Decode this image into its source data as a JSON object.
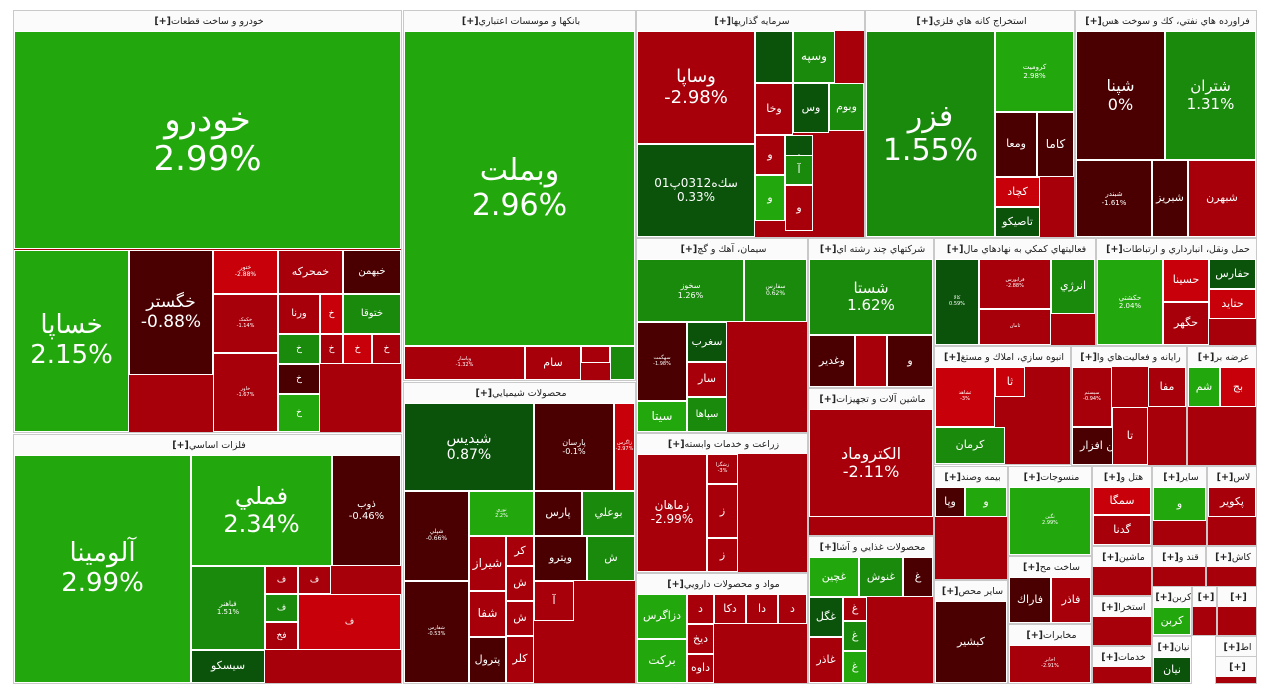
{
  "colors": {
    "strong_green": "#22a80c",
    "green": "#1a8a0c",
    "dark_green": "#0b520b",
    "red": "#c8000a",
    "mid_red": "#a8000a",
    "dark_red": "#4a0000",
    "border": "#ffffff"
  },
  "sectors": [
    {
      "title": "خودرو و ساخت قطعات",
      "expand": "[+]",
      "tiles": [
        {
          "sym": "خودرو",
          "pct": "2.99%",
          "c": "strong_green"
        },
        {
          "sym": "خساپا",
          "pct": "2.15%",
          "c": "strong_green"
        },
        {
          "sym": "خگستر",
          "pct": "-0.88%",
          "c": "dark_red"
        },
        {
          "sym": "ختور",
          "pct": "-2.88%",
          "c": "red"
        },
        {
          "sym": "خمحرکه",
          "pct": "",
          "c": "mid_red"
        },
        {
          "sym": "خبهمن",
          "pct": "",
          "c": "dark_red"
        },
        {
          "sym": "ورنا",
          "pct": "",
          "c": "mid_red"
        },
        {
          "sym": "ختوقا",
          "pct": "",
          "c": "green"
        },
        {
          "sym": "خ",
          "pct": "",
          "c": "red"
        },
        {
          "sym": "خکمک",
          "pct": "-1.14%",
          "c": "mid_red"
        },
        {
          "sym": "خ",
          "pct": "",
          "c": "green"
        },
        {
          "sym": "خ",
          "pct": "",
          "c": "mid_red"
        },
        {
          "sym": "خ",
          "pct": "",
          "c": "dark_red"
        },
        {
          "sym": "خ",
          "pct": "",
          "c": "red"
        },
        {
          "sym": "خ",
          "pct": "",
          "c": "mid_red"
        },
        {
          "sym": "خاور",
          "pct": "-1.67%",
          "c": "mid_red"
        },
        {
          "sym": "خ",
          "pct": "",
          "c": "dark_red"
        },
        {
          "sym": "خ",
          "pct": "",
          "c": "strong_green"
        }
      ]
    },
    {
      "title": "فلزات اساسي",
      "expand": "[+]",
      "tiles": [
        {
          "sym": "آلومينا",
          "pct": "2.99%",
          "c": "strong_green"
        },
        {
          "sym": "فملي",
          "pct": "2.34%",
          "c": "strong_green"
        },
        {
          "sym": "ذوب",
          "pct": "-0.46%",
          "c": "dark_red"
        },
        {
          "sym": "فباهنر",
          "pct": "1.51%",
          "c": "green"
        },
        {
          "sym": "ف",
          "pct": "",
          "c": "mid_red"
        },
        {
          "sym": "ف",
          "pct": "",
          "c": "green"
        },
        {
          "sym": "فخ",
          "pct": "",
          "c": "mid_red"
        },
        {
          "sym": "ف",
          "pct": "",
          "c": "mid_red"
        },
        {
          "sym": "سيسكو",
          "pct": "",
          "c": "dark_green"
        },
        {
          "sym": "ف",
          "pct": "",
          "c": "red"
        }
      ]
    },
    {
      "title": "بانكها و موسسات اعتباري",
      "expand": "[+]",
      "tiles": [
        {
          "sym": "وبملت",
          "pct": "2.96%",
          "c": "strong_green"
        },
        {
          "sym": "وپاسار",
          "pct": "-1.32%",
          "c": "mid_red"
        },
        {
          "sym": "سام",
          "pct": "",
          "c": "mid_red"
        },
        {
          "sym": "",
          "pct": "",
          "c": "mid_red"
        },
        {
          "sym": "",
          "pct": "",
          "c": "green"
        }
      ]
    },
    {
      "title": "محصولات شيميايي",
      "expand": "[+]",
      "tiles": [
        {
          "sym": "شبديس",
          "pct": "0.87%",
          "c": "dark_green"
        },
        {
          "sym": "پارسان",
          "pct": "-0.1%",
          "c": "dark_red"
        },
        {
          "sym": "زاگرس",
          "pct": "-2.97%",
          "c": "red"
        },
        {
          "sym": "شپلي",
          "pct": "-0.66%",
          "c": "dark_red"
        },
        {
          "sym": "نوري",
          "pct": "2.2%",
          "c": "strong_green"
        },
        {
          "sym": "پارس",
          "pct": "",
          "c": "dark_red"
        },
        {
          "sym": "بوعلي",
          "pct": "",
          "c": "green"
        },
        {
          "sym": "شيراز",
          "pct": "",
          "c": "mid_red"
        },
        {
          "sym": "شفارس",
          "pct": "-0.53%",
          "c": "dark_red"
        },
        {
          "sym": "شفا",
          "pct": "",
          "c": "mid_red"
        },
        {
          "sym": "پترول",
          "pct": "",
          "c": "dark_red"
        },
        {
          "sym": "شصدف",
          "pct": "2.2%",
          "c": "strong_green"
        },
        {
          "sym": "کر",
          "pct": "",
          "c": "mid_red"
        },
        {
          "sym": "ويترو",
          "pct": "",
          "c": "dark_red"
        },
        {
          "sym": "ش",
          "pct": "",
          "c": "green"
        },
        {
          "sym": "ش",
          "pct": "",
          "c": "mid_red"
        },
        {
          "sym": "ش",
          "pct": "",
          "c": "mid_red"
        },
        {
          "sym": "آ",
          "pct": "",
          "c": "mid_red"
        },
        {
          "sym": "کلر",
          "pct": "",
          "c": "mid_red"
        }
      ]
    },
    {
      "title": "سرمايه گذاريها",
      "expand": "[+]",
      "tiles": [
        {
          "sym": "وساپا",
          "pct": "-2.98%",
          "c": "mid_red"
        },
        {
          "sym": "سك‌ه0312پ01",
          "pct": "0.33%",
          "c": "dark_green"
        },
        {
          "sym": "",
          "pct": "",
          "c": "dark_green"
        },
        {
          "sym": "وسپه",
          "pct": "",
          "c": "green"
        },
        {
          "sym": "وخا",
          "pct": "",
          "c": "mid_red"
        },
        {
          "sym": "وس",
          "pct": "",
          "c": "dark_green"
        },
        {
          "sym": "وبوم",
          "pct": "",
          "c": "green"
        },
        {
          "sym": "و",
          "pct": "",
          "c": "mid_red"
        },
        {
          "sym": "و",
          "pct": "",
          "c": "dark_green"
        },
        {
          "sym": "آ",
          "pct": "",
          "c": "green"
        },
        {
          "sym": "و",
          "pct": "",
          "c": "strong_green"
        },
        {
          "sym": "و",
          "pct": "",
          "c": "mid_red"
        }
      ]
    },
    {
      "title": "استخراج كانه هاي فلزي",
      "expand": "[+]",
      "tiles": [
        {
          "sym": "فزر",
          "pct": "1.55%",
          "c": "green"
        },
        {
          "sym": "کرومیت",
          "pct": "2.98%",
          "c": "strong_green"
        },
        {
          "sym": "کاما",
          "pct": "",
          "c": "dark_red"
        },
        {
          "sym": "ومعا",
          "pct": "",
          "c": "dark_red"
        },
        {
          "sym": "کچاد",
          "pct": "",
          "c": "red"
        },
        {
          "sym": "تاصيكو",
          "pct": "",
          "c": "dark_green"
        }
      ]
    },
    {
      "title": "فراورده هاي نفتي، كك و سوخت هس",
      "expand": "[+]",
      "tiles": [
        {
          "sym": "شپنا",
          "pct": "0%",
          "c": "dark_red"
        },
        {
          "sym": "شتران",
          "pct": "1.31%",
          "c": "green"
        },
        {
          "sym": "شبندر",
          "pct": "-1.61%",
          "c": "dark_red"
        },
        {
          "sym": "شبريز",
          "pct": "",
          "c": "dark_red"
        },
        {
          "sym": "شبهرن",
          "pct": "",
          "c": "mid_red"
        }
      ]
    },
    {
      "title": "سيمان، آهك و گچ",
      "expand": "[+]",
      "tiles": [
        {
          "sym": "سخوز",
          "pct": "1.26%",
          "c": "green"
        },
        {
          "sym": "سفارس",
          "pct": "0.62%",
          "c": "green"
        },
        {
          "sym": "سهگمت",
          "pct": "-1.98%",
          "c": "dark_red"
        },
        {
          "sym": "سغرب",
          "pct": "",
          "c": "dark_green"
        },
        {
          "sym": "سار",
          "pct": "",
          "c": "mid_red"
        },
        {
          "sym": "سپاها",
          "pct": "",
          "c": "green"
        },
        {
          "sym": "سيتا",
          "pct": "",
          "c": "strong_green"
        }
      ]
    },
    {
      "title": "شركتهاي چند رشته اي",
      "expand": "[+]",
      "tiles": [
        {
          "sym": "شستا",
          "pct": "1.62%",
          "c": "green"
        },
        {
          "sym": "وغدير",
          "pct": "",
          "c": "dark_red"
        },
        {
          "sym": "",
          "pct": "",
          "c": "mid_red"
        },
        {
          "sym": "و",
          "pct": "",
          "c": "dark_red"
        }
      ]
    },
    {
      "title": "ماشين آلات و تجهيزات",
      "expand": "[+]",
      "tiles": [
        {
          "sym": "الكتروماد",
          "pct": "-2.11%",
          "c": "mid_red"
        }
      ]
    },
    {
      "title": "زراعت و خدمات وابسته",
      "expand": "[+]",
      "tiles": [
        {
          "sym": "زماهان",
          "pct": "-2.99%",
          "c": "mid_red"
        },
        {
          "sym": "زشگزا",
          "pct": "-3%",
          "c": "mid_red"
        },
        {
          "sym": "ز",
          "pct": "",
          "c": "mid_red"
        },
        {
          "sym": "ز",
          "pct": "",
          "c": "mid_red"
        }
      ]
    },
    {
      "title": "مواد و محصولات دارويي",
      "expand": "[+]",
      "tiles": [
        {
          "sym": "دزاگرس",
          "pct": "",
          "c": "strong_green"
        },
        {
          "sym": "بركت",
          "pct": "",
          "c": "strong_green"
        },
        {
          "sym": "د",
          "pct": "",
          "c": "mid_red"
        },
        {
          "sym": "ديخ",
          "pct": "",
          "c": "mid_red"
        },
        {
          "sym": "داوه",
          "pct": "",
          "c": "mid_red"
        },
        {
          "sym": "دكا",
          "pct": "",
          "c": "mid_red"
        },
        {
          "sym": "دا",
          "pct": "",
          "c": "mid_red"
        },
        {
          "sym": "د",
          "pct": "",
          "c": "mid_red"
        }
      ]
    },
    {
      "title": "محصولات غذايي و آشا",
      "expand": "[+]",
      "tiles": [
        {
          "sym": "غچين",
          "pct": "",
          "c": "strong_green"
        },
        {
          "sym": "غنوش",
          "pct": "",
          "c": "green"
        },
        {
          "sym": "غ",
          "pct": "",
          "c": "dark_red"
        },
        {
          "sym": "غگل",
          "pct": "",
          "c": "dark_green"
        },
        {
          "sym": "غ",
          "pct": "",
          "c": "mid_red"
        },
        {
          "sym": "غ",
          "pct": "",
          "c": "green"
        },
        {
          "sym": "غاذر",
          "pct": "",
          "c": "mid_red"
        },
        {
          "sym": "غ",
          "pct": "",
          "c": "strong_green"
        }
      ]
    },
    {
      "title": "فعاليتهاي كمكي به نهادهاي مال",
      "expand": "[+]",
      "tiles": [
        {
          "sym": "کالا",
          "pct": "0.59%",
          "c": "dark_green"
        },
        {
          "sym": "فرابورس",
          "pct": "-2.88%",
          "c": "mid_red"
        },
        {
          "sym": "انرژي",
          "pct": "",
          "c": "green"
        },
        {
          "sym": "ثامان",
          "pct": "",
          "c": "mid_red"
        }
      ]
    },
    {
      "title": "انبوه سازي، املاك و مستغ",
      "expand": "[+]",
      "tiles": [
        {
          "sym": "ثشاهد",
          "pct": "-3%",
          "c": "red"
        },
        {
          "sym": "ثا",
          "pct": "",
          "c": "red"
        },
        {
          "sym": "كرمان",
          "pct": "",
          "c": "green"
        }
      ]
    },
    {
      "title": "حمل ونقل، انبارداري و ارتباطات",
      "expand": "[+]",
      "tiles": [
        {
          "sym": "حکشتي",
          "pct": "2.04%",
          "c": "strong_green"
        },
        {
          "sym": "حسينا",
          "pct": "",
          "c": "red"
        },
        {
          "sym": "حفارس",
          "pct": "",
          "c": "dark_green"
        },
        {
          "sym": "حتايد",
          "pct": "",
          "c": "red"
        },
        {
          "sym": "حگهر",
          "pct": "",
          "c": "mid_red"
        }
      ]
    },
    {
      "title": "رايانه و فعاليت‌هاي وا",
      "expand": "[+]",
      "tiles": [
        {
          "sym": "سيستم",
          "pct": "-0.94%",
          "c": "mid_red"
        },
        {
          "sym": "مفا",
          "pct": "",
          "c": "mid_red"
        },
        {
          "sym": "فن افزار",
          "pct": "",
          "c": "dark_red"
        },
        {
          "sym": "تا",
          "pct": "",
          "c": "mid_red"
        }
      ]
    },
    {
      "title": "عرضه بر",
      "expand": "[+]",
      "tiles": [
        {
          "sym": "شم",
          "pct": "",
          "c": "strong_green"
        },
        {
          "sym": "بج",
          "pct": "",
          "c": "red"
        }
      ]
    },
    {
      "title": "بيمه وصند",
      "expand": "[+]",
      "tiles": [
        {
          "sym": "وپا",
          "pct": "",
          "c": "dark_red"
        },
        {
          "sym": "و",
          "pct": "",
          "c": "strong_green"
        }
      ]
    },
    {
      "title": "منسوجات",
      "expand": "[+]",
      "tiles": [
        {
          "sym": "نگين",
          "pct": "2.99%",
          "c": "strong_green"
        }
      ]
    },
    {
      "title": "هتل و",
      "expand": "[+]",
      "tiles": [
        {
          "sym": "سمگا",
          "pct": "",
          "c": "red"
        },
        {
          "sym": "گدنا",
          "pct": "",
          "c": "mid_red"
        }
      ]
    },
    {
      "title": "ساير",
      "expand": "[+]",
      "tiles": [
        {
          "sym": "و",
          "pct": "",
          "c": "strong_green"
        }
      ]
    },
    {
      "title": "لاس",
      "expand": "[+]",
      "tiles": [
        {
          "sym": "پکوير",
          "pct": "",
          "c": "mid_red"
        }
      ]
    },
    {
      "title": "ساخت مح",
      "expand": "[+]",
      "tiles": [
        {
          "sym": "فاراك",
          "pct": "",
          "c": "dark_red"
        },
        {
          "sym": "فاذر",
          "pct": "",
          "c": "mid_red"
        }
      ]
    },
    {
      "title": "ساير محص",
      "expand": "[+]",
      "tiles": [
        {
          "sym": "كبشير",
          "pct": "",
          "c": "dark_red"
        }
      ]
    },
    {
      "title": "مخابرات",
      "expand": "[+]",
      "tiles": [
        {
          "sym": "اخابر",
          "pct": "-2.91%",
          "c": "mid_red"
        }
      ]
    },
    {
      "title": "ماشين",
      "expand": "[+]",
      "tiles": []
    },
    {
      "title": "قند و",
      "expand": "[+]",
      "tiles": []
    },
    {
      "title": "كاش",
      "expand": "[+]",
      "tiles": []
    },
    {
      "title": "استخرا",
      "expand": "[+]",
      "tiles": []
    },
    {
      "title": "كربن",
      "expand": "[+]",
      "tiles": [
        {
          "sym": "كربن",
          "pct": "",
          "c": "strong_green"
        }
      ]
    },
    {
      "title": "خدمات",
      "expand": "[+]",
      "tiles": []
    },
    {
      "title": "نيان",
      "expand": "[+]",
      "tiles": [
        {
          "sym": "نيان",
          "pct": "",
          "c": "dark_green"
        }
      ]
    },
    {
      "title": "اط",
      "expand": "[+]",
      "tiles": []
    },
    {
      "title": "",
      "expand": "[+]",
      "tiles": []
    },
    {
      "title": "",
      "expand": "[+]",
      "tiles": []
    },
    {
      "title": "",
      "expand": "[+]",
      "tiles": []
    }
  ]
}
